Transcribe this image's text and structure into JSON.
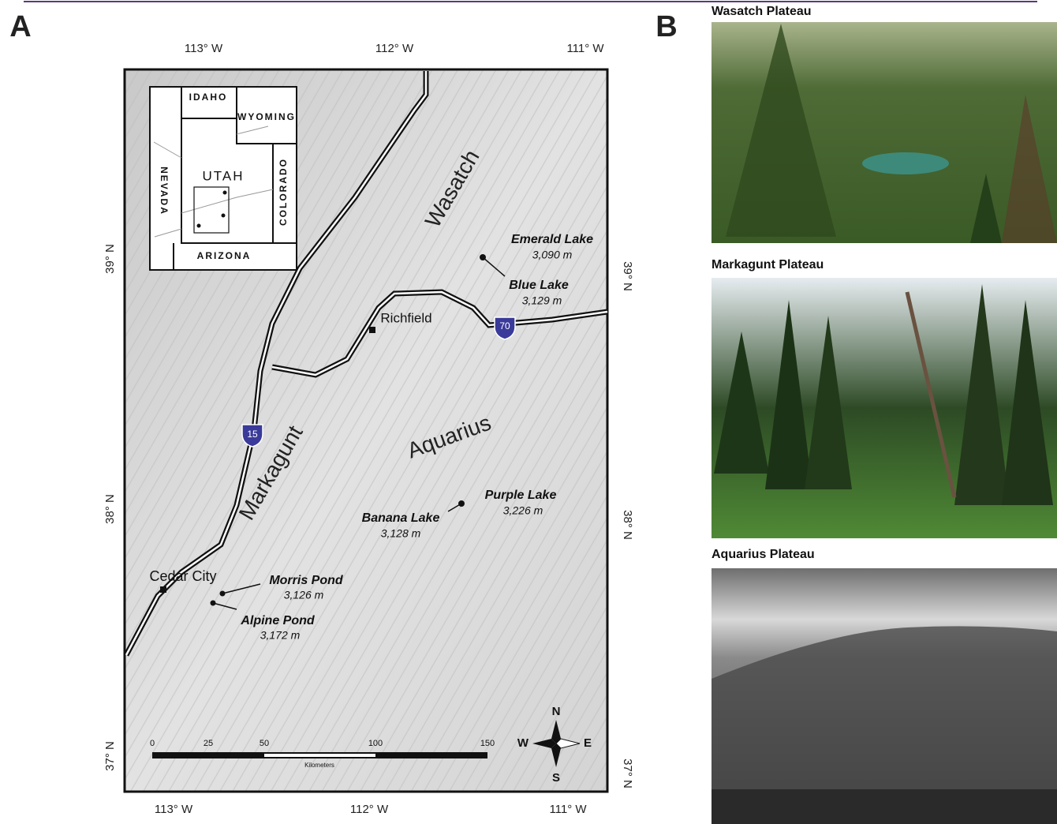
{
  "panel_labels": [
    "A",
    "B"
  ],
  "map": {
    "lon_top": [
      "113° W",
      "112° W",
      "111° W"
    ],
    "lon_bottom": [
      "113° W",
      "112° W",
      "111° W"
    ],
    "lat_left": [
      "39° N",
      "38° N",
      "37° N"
    ],
    "lat_right": [
      "39° N",
      "38° N",
      "37° N"
    ],
    "inset": {
      "states": [
        "IDAHO",
        "WYOMING",
        "NEVADA",
        "UTAH",
        "COLORADO",
        "ARIZONA"
      ]
    },
    "regions": [
      "Wasatch",
      "Aquarius",
      "Markagunt"
    ],
    "lakes": [
      {
        "name": "Emerald Lake",
        "elevation": "3,090 m"
      },
      {
        "name": "Blue Lake",
        "elevation": "3,129 m"
      },
      {
        "name": "Purple Lake",
        "elevation": "3,226 m"
      },
      {
        "name": "Banana Lake",
        "elevation": "3,128 m"
      },
      {
        "name": "Morris Pond",
        "elevation": "3,126 m"
      },
      {
        "name": "Alpine Pond",
        "elevation": "3,172 m"
      }
    ],
    "towns": [
      "Richfield",
      "Cedar City"
    ],
    "highways": [
      "70",
      "15"
    ],
    "scale": {
      "ticks": [
        "0",
        "25",
        "50",
        "100",
        "150"
      ],
      "unit": "Kilometers"
    },
    "compass": [
      "N",
      "E",
      "S",
      "W"
    ]
  },
  "photos": [
    {
      "caption": "Wasatch Plateau"
    },
    {
      "caption": "Markagunt Plateau"
    },
    {
      "caption": "Aquarius Plateau"
    }
  ]
}
